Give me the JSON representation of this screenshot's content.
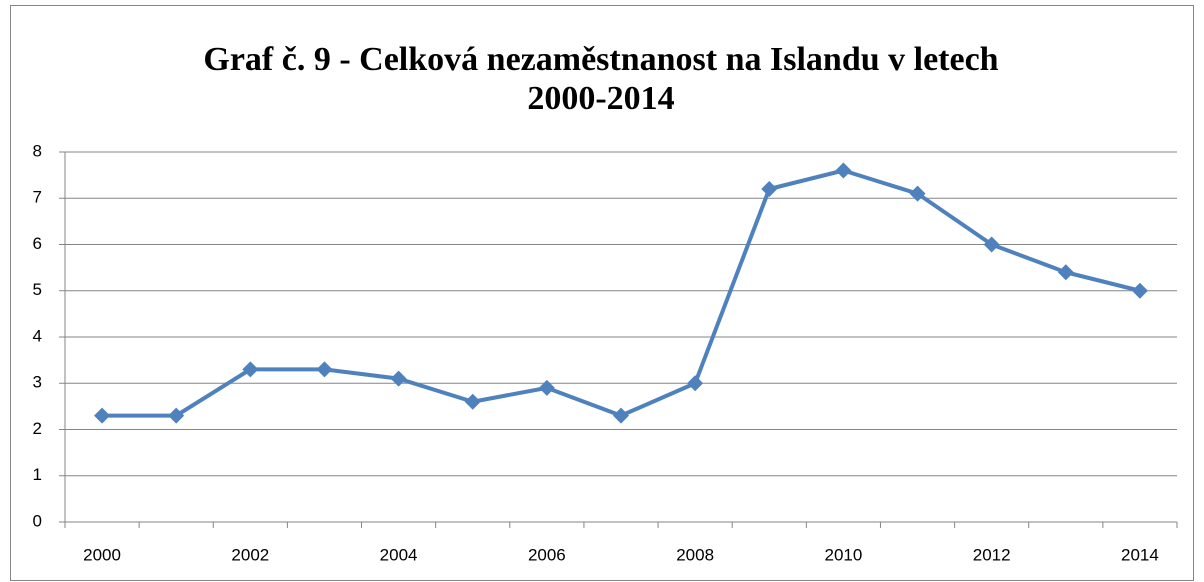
{
  "chart_data": {
    "type": "line",
    "title": [
      "Graf č. 9 - Celková nezaměstnanost na Islandu v letech",
      "2000-2014"
    ],
    "categories": [
      "2000",
      null,
      "2002",
      null,
      "2004",
      null,
      "2006",
      null,
      "2008",
      null,
      "2010",
      null,
      "2012",
      null,
      "2014"
    ],
    "series": [
      {
        "name": "Celková nezaměstnanost",
        "color": "#4f81bd",
        "values": [
          2.3,
          2.3,
          3.3,
          3.3,
          3.1,
          2.6,
          2.9,
          2.3,
          3.0,
          7.2,
          7.6,
          7.1,
          6.0,
          5.4,
          5.0
        ]
      }
    ],
    "ylim": [
      0,
      8
    ],
    "yticks": [
      0,
      1,
      2,
      3,
      4,
      5,
      6,
      7,
      8
    ],
    "grid": true,
    "marker": "diamond"
  }
}
